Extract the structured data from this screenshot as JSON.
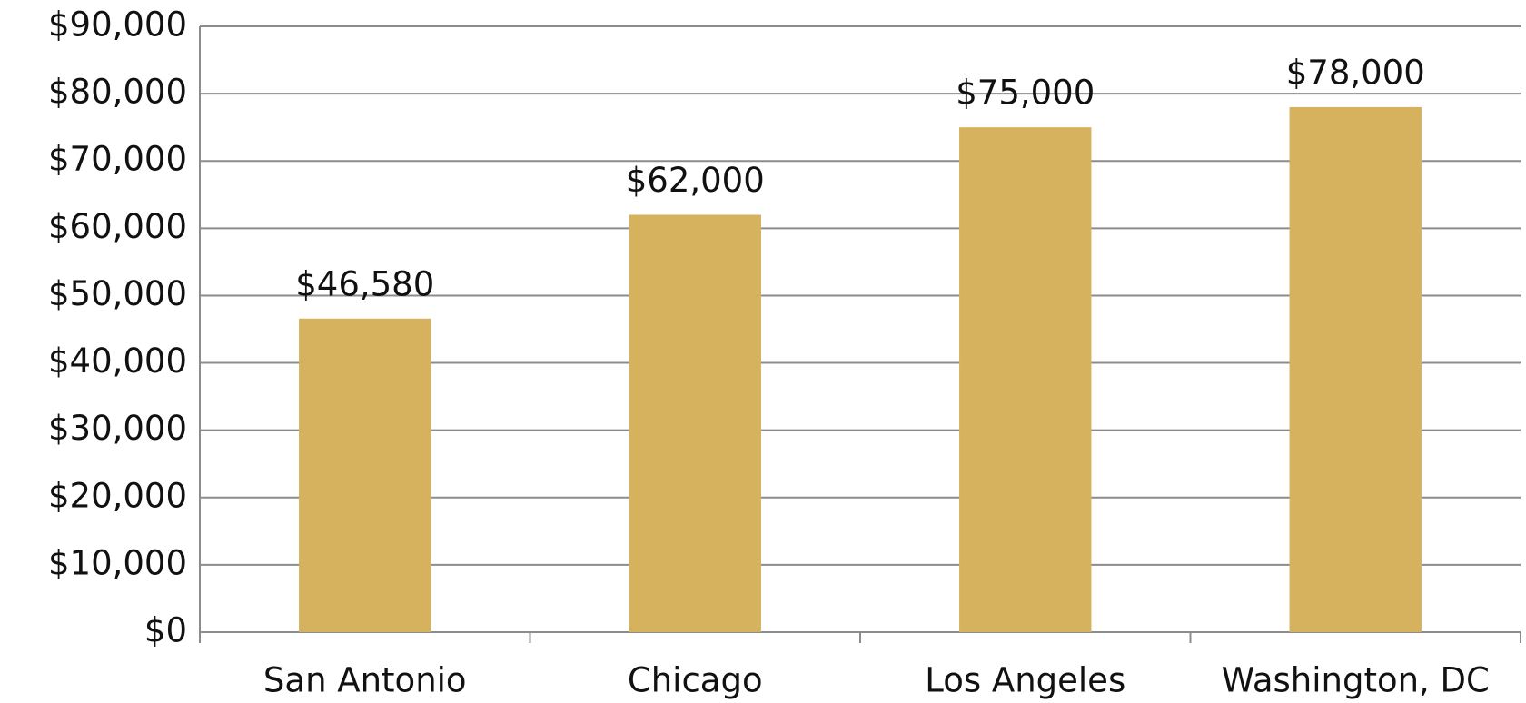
{
  "chart_data": {
    "type": "bar",
    "categories": [
      "San Antonio",
      "Chicago",
      "Los Angeles",
      "Washington, DC"
    ],
    "values": [
      46580,
      62000,
      75000,
      78000
    ],
    "value_labels": [
      "$46,580",
      "$62,000",
      "$75,000",
      "$78,000"
    ],
    "color": "#d6b15e",
    "ylim": [
      0,
      90000
    ],
    "yticks": [
      {
        "value": 0,
        "label": "$0"
      },
      {
        "value": 10000,
        "label": "$10,000"
      },
      {
        "value": 20000,
        "label": "$20,000"
      },
      {
        "value": 30000,
        "label": "$30,000"
      },
      {
        "value": 40000,
        "label": "$40,000"
      },
      {
        "value": 50000,
        "label": "$50,000"
      },
      {
        "value": 60000,
        "label": "$60,000"
      },
      {
        "value": 70000,
        "label": "$70,000"
      },
      {
        "value": 80000,
        "label": "$80,000"
      },
      {
        "value": 90000,
        "label": "$90,000"
      }
    ],
    "grid": true
  }
}
